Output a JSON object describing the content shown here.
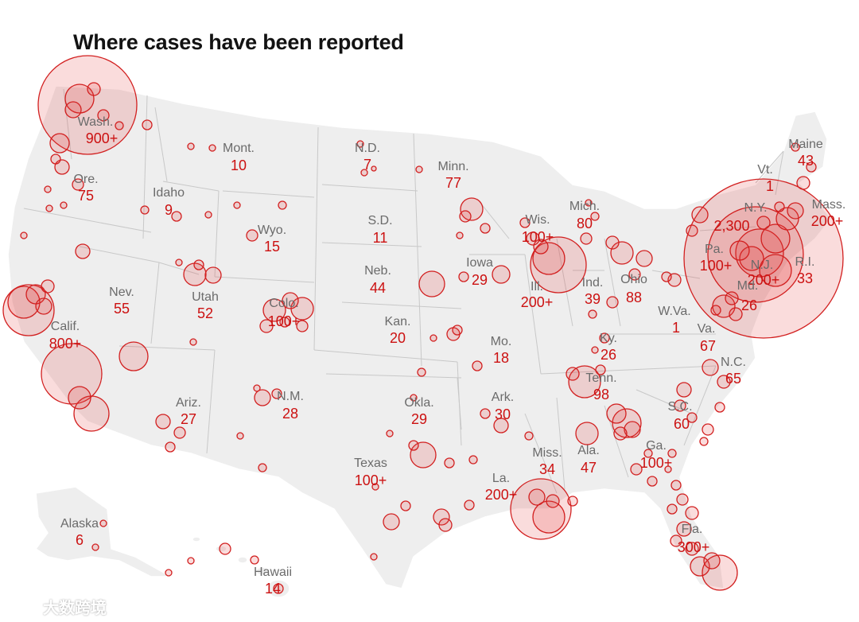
{
  "title": "Where cases have been reported",
  "colors": {
    "bubble_stroke": "#d21f1f",
    "bubble_fill": "#e63c3c",
    "land": "#eeeeee",
    "count_text": "#cc1111",
    "label_text": "#6b6b6b"
  },
  "states": [
    {
      "name": "Wash.",
      "count": "900+"
    },
    {
      "name": "Ore.",
      "count": "75"
    },
    {
      "name": "Idaho",
      "count": "9"
    },
    {
      "name": "Mont.",
      "count": "10"
    },
    {
      "name": "N.D.",
      "count": "7"
    },
    {
      "name": "Minn.",
      "count": "77"
    },
    {
      "name": "Wyo.",
      "count": "15"
    },
    {
      "name": "S.D.",
      "count": "11"
    },
    {
      "name": "Nev.",
      "count": "55"
    },
    {
      "name": "Utah",
      "count": "52"
    },
    {
      "name": "Colo.",
      "count": "100+"
    },
    {
      "name": "Neb.",
      "count": "44"
    },
    {
      "name": "Iowa",
      "count": "29"
    },
    {
      "name": "Calif.",
      "count": "800+"
    },
    {
      "name": "Kan.",
      "count": "20"
    },
    {
      "name": "Mo.",
      "count": "18"
    },
    {
      "name": "Ill.",
      "count": "200+"
    },
    {
      "name": "Wis.",
      "count": "100+"
    },
    {
      "name": "Mich.",
      "count": "80"
    },
    {
      "name": "Ind.",
      "count": "39"
    },
    {
      "name": "Ohio",
      "count": "88"
    },
    {
      "name": "Ariz.",
      "count": "27"
    },
    {
      "name": "N.M.",
      "count": "28"
    },
    {
      "name": "Okla.",
      "count": "29"
    },
    {
      "name": "Ark.",
      "count": "30"
    },
    {
      "name": "Ky.",
      "count": "26"
    },
    {
      "name": "W.Va.",
      "count": "1"
    },
    {
      "name": "Va.",
      "count": "67"
    },
    {
      "name": "Tenn.",
      "count": "98"
    },
    {
      "name": "N.C.",
      "count": "65"
    },
    {
      "name": "S.C.",
      "count": "60"
    },
    {
      "name": "Texas",
      "count": "100+"
    },
    {
      "name": "Miss.",
      "count": "34"
    },
    {
      "name": "Ala.",
      "count": "47"
    },
    {
      "name": "Ga.",
      "count": "100+"
    },
    {
      "name": "La.",
      "count": "200+"
    },
    {
      "name": "Fla.",
      "count": "300+"
    },
    {
      "name": "Alaska",
      "count": "6"
    },
    {
      "name": "Hawaii",
      "count": "14"
    },
    {
      "name": "Maine",
      "count": "43"
    },
    {
      "name": "Vt.",
      "count": "1"
    },
    {
      "name": "N.Y.",
      "count": "2,300"
    },
    {
      "name": "Mass.",
      "count": "200+"
    },
    {
      "name": "Pa.",
      "count": "100+"
    },
    {
      "name": "N.J.",
      "count": "200+"
    },
    {
      "name": "R.I.",
      "count": "33"
    },
    {
      "name": "Md.",
      "count": "26"
    }
  ],
  "watermark": "大数跨境"
}
